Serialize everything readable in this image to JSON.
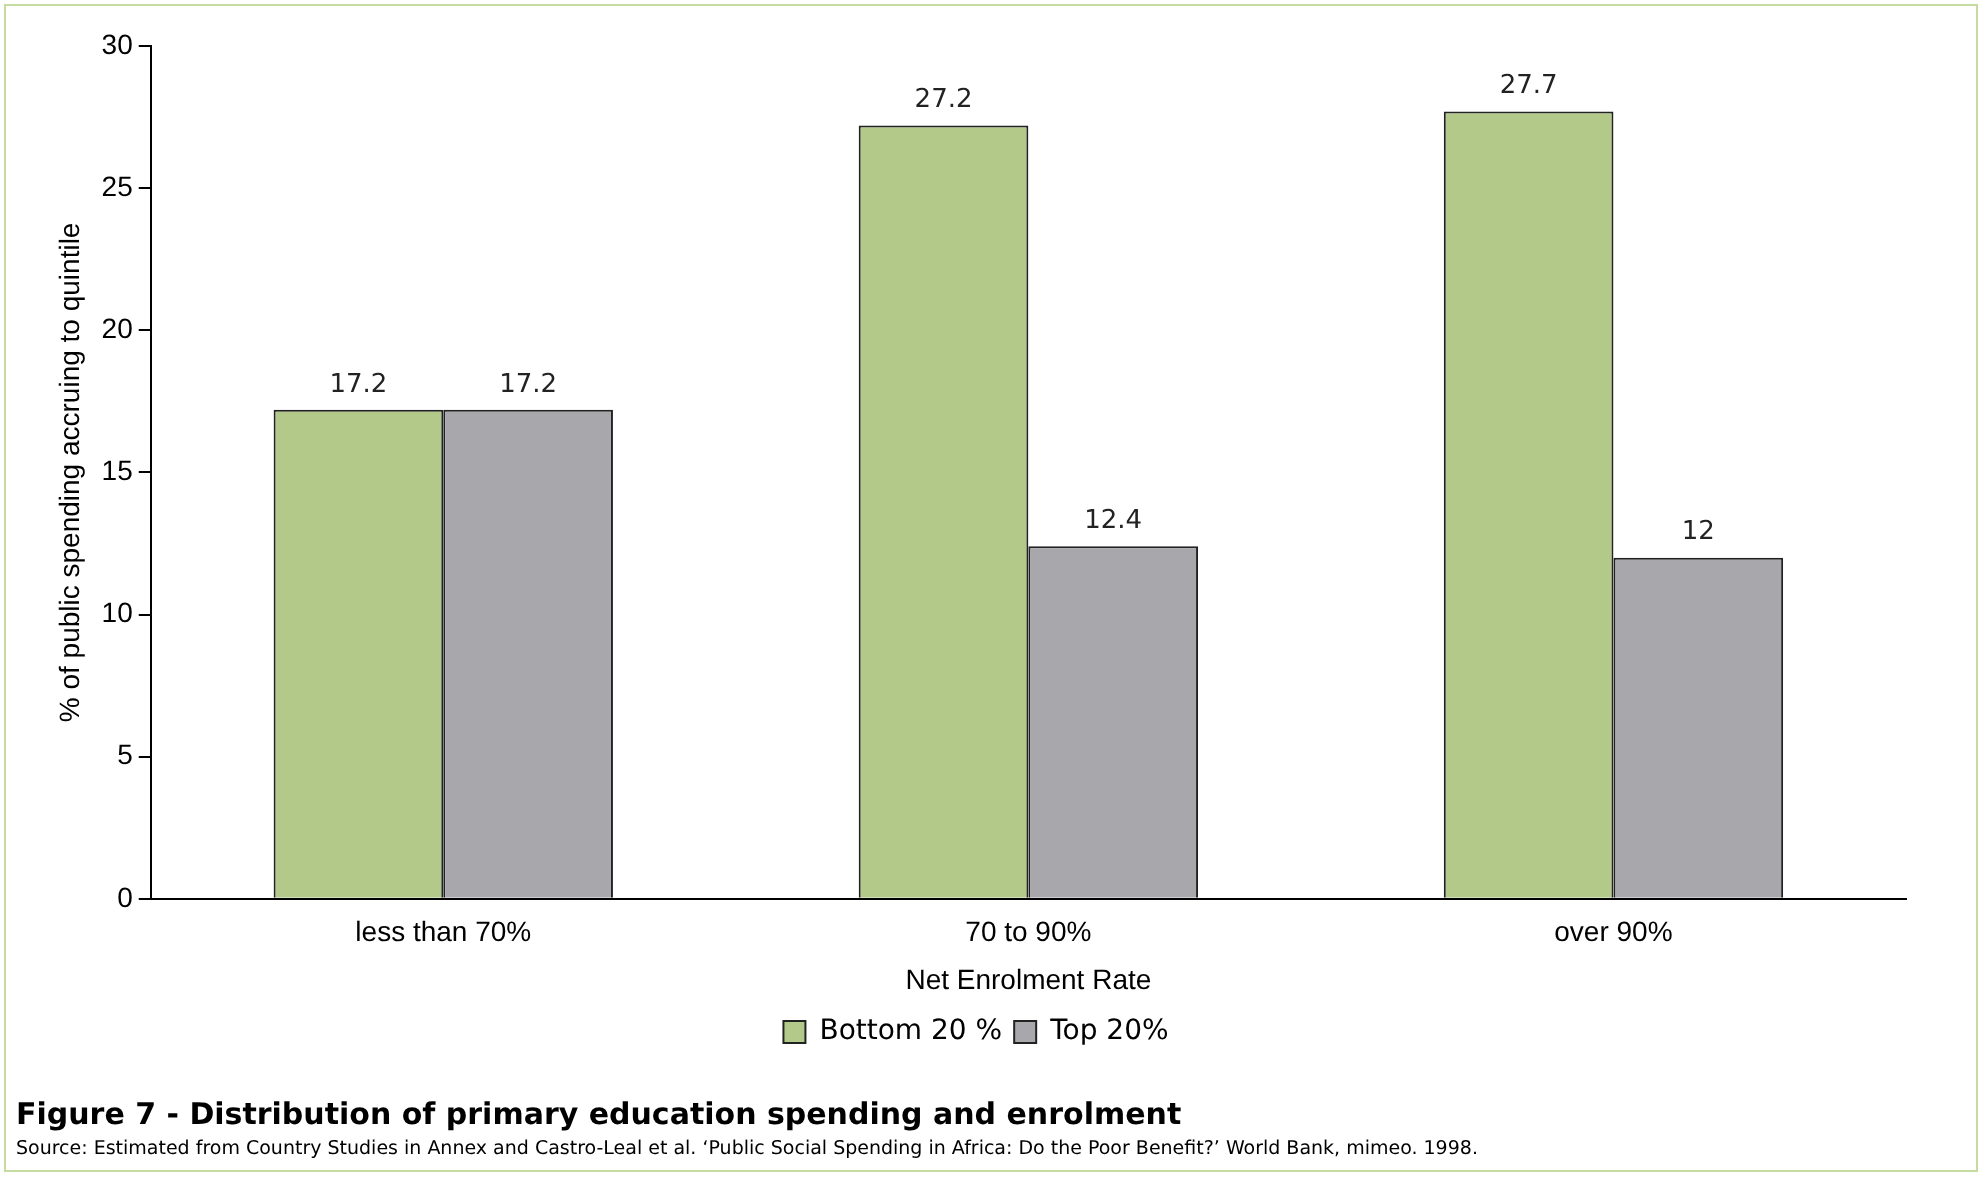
{
  "chart_data": {
    "type": "bar",
    "title": "Figure 7 - Distribution of primary education spending and enrolment",
    "xlabel": "Net Enrolment Rate",
    "ylabel": "% of public spending accruing to quintile",
    "categories": [
      "less than 70%",
      "70 to 90%",
      "over 90%"
    ],
    "series": [
      {
        "name": "Bottom 20 %",
        "color": "#b3c98a",
        "values": [
          17.2,
          27.2,
          27.7
        ]
      },
      {
        "name": "Top 20%",
        "color": "#a8a8ac",
        "values": [
          17.2,
          12.4,
          12
        ]
      }
    ],
    "ylim": [
      0,
      30
    ],
    "yticks": [
      0,
      5,
      10,
      15,
      20,
      25,
      30
    ],
    "grid": false,
    "legend": "bottom",
    "data_labels": true,
    "annotations": [
      "Source: Estimated from Country Studies in Annex and Castro-Leal et al. ‘Public Social Spending in Africa: Do the Poor Benefit?’ World Bank, mimeo. 1998."
    ]
  }
}
